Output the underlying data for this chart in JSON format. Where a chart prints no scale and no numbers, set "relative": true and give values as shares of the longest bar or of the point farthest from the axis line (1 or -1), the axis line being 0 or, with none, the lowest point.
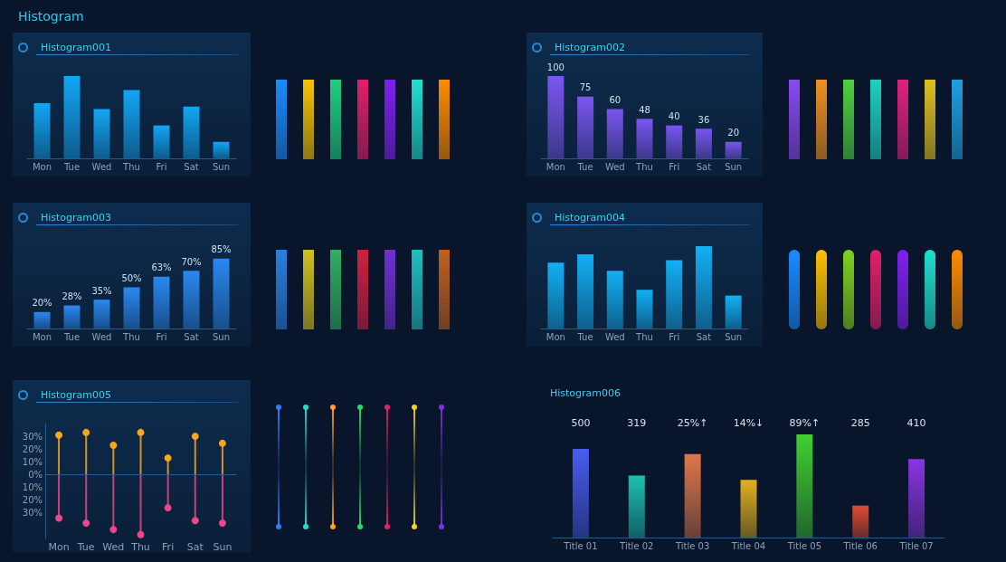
{
  "chart_data": [
    {
      "type": "other",
      "title": "Histogram"
    },
    {
      "type": "bar",
      "title": "Histogram001",
      "categories": [
        "Mon",
        "Tue",
        "Wed",
        "Thu",
        "Fri",
        "Sat",
        "Sun"
      ],
      "values": [
        0.67,
        1,
        0.6,
        0.83,
        0.4,
        0.63,
        0.2
      ],
      "color": "#12a6f4",
      "relative": true
    },
    {
      "type": "bar",
      "title": "Histogram002",
      "categories": [
        "Mon",
        "Tue",
        "Wed",
        "Thu",
        "Fri",
        "Sat",
        "Sun"
      ],
      "values": [
        100,
        75,
        60,
        48,
        40,
        36,
        20
      ],
      "color": "#7a55f0",
      "data_labels": true,
      "tick_labels": "x"
    },
    {
      "type": "bar",
      "title": "Histogram003",
      "categories": [
        "Mon",
        "Tue",
        "Wed",
        "Thu",
        "Fri",
        "Sat",
        "Sun"
      ],
      "values": [
        20,
        28,
        35,
        50,
        63,
        70,
        85
      ],
      "value_labels": [
        "20%",
        "28%",
        "35%",
        "50%",
        "63%",
        "70%",
        "85%"
      ],
      "color": "#2a88f0",
      "tick_labels": "x"
    },
    {
      "type": "bar",
      "title": "Histogram004",
      "categories": [
        "Mon",
        "Tue",
        "Wed",
        "Thu",
        "Fri",
        "Sat",
        "Sun"
      ],
      "values": [
        0.8,
        0.9,
        0.7,
        0.47,
        0.83,
        1,
        0.4
      ],
      "color": "#12b0f4",
      "relative": true
    },
    {
      "type": "lollipop",
      "title": "Histogram005",
      "categories": [
        "Mon",
        "Tue",
        "Wed",
        "Thu",
        "Fri",
        "Sat",
        "Sun"
      ],
      "ylim": [
        -50,
        40
      ],
      "yticks": [
        {
          "value": -30,
          "label": "30%"
        },
        {
          "value": -20,
          "label": "20%"
        },
        {
          "value": -10,
          "label": "10%"
        },
        {
          "value": 0,
          "label": "0%"
        },
        {
          "value": 10,
          "label": "10%"
        },
        {
          "value": 20,
          "label": "20%"
        },
        {
          "value": 30,
          "label": "30%"
        }
      ],
      "ref_lines": [
        {
          "axis": "y",
          "value": 0
        }
      ],
      "series": [
        {
          "color": "#f5a623",
          "values": [
            31,
            33,
            23,
            33,
            13,
            30,
            24.5
          ]
        },
        {
          "color": "#e8488a",
          "values": [
            -34,
            -38,
            -43,
            -47,
            -26,
            -36,
            -38
          ]
        }
      ]
    },
    {
      "type": "bar",
      "title": "Histogram006",
      "categories": [
        "Title 01",
        "Title 02",
        "Title 03",
        "Title 04",
        "Title 05",
        "Title 06",
        "Title 07"
      ],
      "values": [
        0.86,
        0.6,
        0.81,
        0.56,
        1,
        0.31,
        0.76
      ],
      "colors": [
        "#4a5cf0",
        "#1cc0b0",
        "#e0784a",
        "#e0b020",
        "#40d030",
        "#e04a30",
        "#8a35e0"
      ],
      "relative": true,
      "annotations": [
        "500",
        "319",
        "25%↑",
        "14%↓",
        "89%↑",
        "285",
        "410"
      ]
    }
  ]
}
